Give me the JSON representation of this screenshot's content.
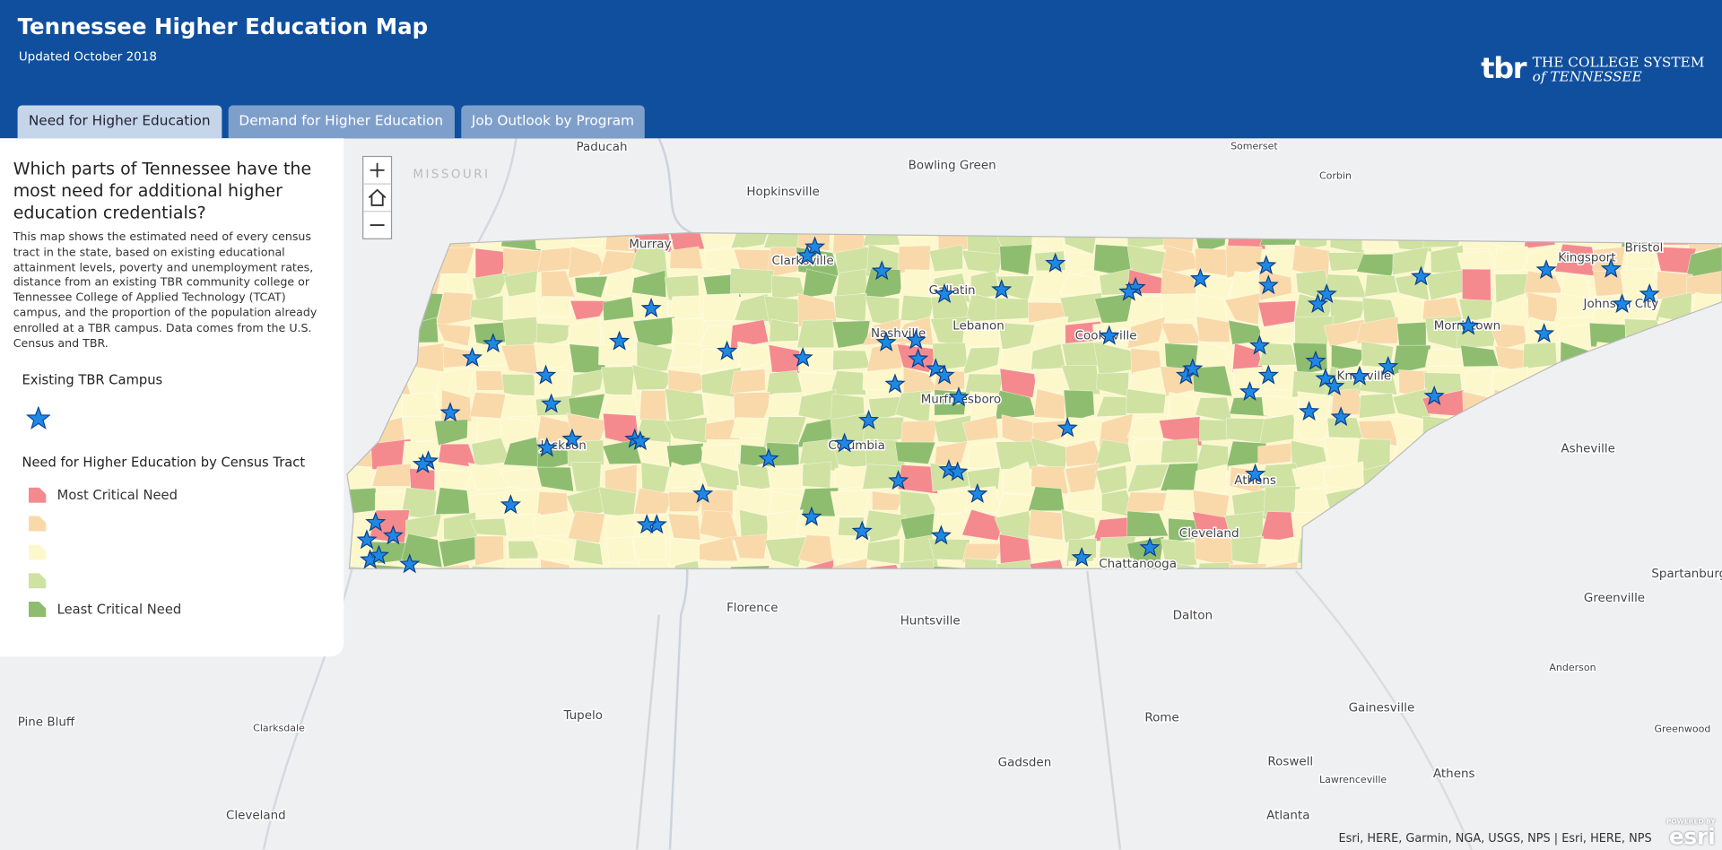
{
  "header": {
    "title": "Tennessee Higher Education Map",
    "subtitle": "Updated October 2018",
    "logo_abbr": "tbr",
    "logo_line1": "THE COLLEGE SYSTEM",
    "logo_line2": "of TENNESSEE"
  },
  "tabs": [
    "Need for Higher Education",
    "Demand for Higher Education",
    "Job Outlook by Program"
  ],
  "panel": {
    "heading": "Which parts of Tennessee have the most need for additional higher education credentials?",
    "description": "This map shows the estimated need of every census tract in the state, based on existing educational attainment levels, poverty and unemployment rates, distance from an existing TBR community college or Tennessee College of Applied Technology (TCAT) campus, and the proportion of the population already enrolled at a TBR campus. Data comes from the U.S. Census and TBR.",
    "campus_legend_title": "Existing TBR Campus",
    "tract_legend_title": "Need for Higher Education by Census Tract",
    "tract_legend": [
      {
        "label": "Most Critical Need",
        "color": "#f48a8e"
      },
      {
        "color": "#f9d9aa"
      },
      {
        "color": "#fdf8cc"
      },
      {
        "color": "#cfe2a2"
      },
      {
        "label": "Least Critical Need",
        "color": "#8fbd70"
      }
    ]
  },
  "map": {
    "region_label": "MISSOURI",
    "places": [
      "Paducah",
      "Somerset",
      "Bowling Green",
      "Corbin",
      "Hopkinsville",
      "Murray",
      "Clarksville",
      "Gallatin",
      "Bristol",
      "Kingsport",
      "Johnson City",
      "Nashville",
      "Lebanon",
      "Cookeville",
      "Morristown",
      "Knoxville",
      "Murfreesboro",
      "Jackson",
      "Columbia",
      "Asheville",
      "Athens",
      "Cleveland",
      "Chattanooga",
      "Spartanburg",
      "Greenville",
      "Florence",
      "Huntsville",
      "Dalton",
      "Anderson",
      "Gainesville",
      "Tupelo",
      "Rome",
      "Pine Bluff",
      "Clarksdale",
      "Greenwood",
      "Gadsden",
      "Roswell",
      "Athens",
      "Lawrenceville",
      "Cleveland",
      "Atlanta"
    ],
    "attribution": "Esri, HERE, Garmin, NGA, USGS, NPS | Esri, HERE, NPS",
    "powered_by": "POWERED BY",
    "esri": "esri"
  }
}
